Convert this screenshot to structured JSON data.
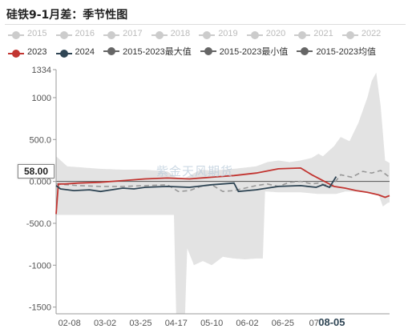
{
  "title": "硅铁9-1月差：季节性图",
  "watermark": "紫金天风期货",
  "value_flag": "58.00",
  "legend_row1": [
    {
      "label": "2015",
      "color": "#cccccc",
      "muted": true
    },
    {
      "label": "2016",
      "color": "#cccccc",
      "muted": true
    },
    {
      "label": "2017",
      "color": "#cccccc",
      "muted": true
    },
    {
      "label": "2018",
      "color": "#cccccc",
      "muted": true
    },
    {
      "label": "2019",
      "color": "#cccccc",
      "muted": true
    },
    {
      "label": "2020",
      "color": "#cccccc",
      "muted": true
    },
    {
      "label": "2021",
      "color": "#cccccc",
      "muted": true
    },
    {
      "label": "2022",
      "color": "#cccccc",
      "muted": true
    }
  ],
  "legend_row2": [
    {
      "label": "2023",
      "color": "#c23531",
      "muted": false
    },
    {
      "label": "2024",
      "color": "#2f4554",
      "muted": false
    },
    {
      "label": "2015-2023最大值",
      "color": "#666666",
      "muted": false
    },
    {
      "label": "2015-2023最小值",
      "color": "#666666",
      "muted": false
    },
    {
      "label": "2015-2023均值",
      "color": "#666666",
      "muted": false
    }
  ],
  "chart_data": {
    "type": "line",
    "title": "硅铁9-1月差：季节性图",
    "ylim": [
      -1580,
      1334
    ],
    "y_ticks": [
      "1334",
      "1000",
      "500.0",
      "0.000",
      "-500.0",
      "-1000",
      "-1500"
    ],
    "y_tick_values": [
      1334,
      1000,
      500,
      0,
      -500,
      -1000,
      -1500
    ],
    "x_ticks": [
      "02-08",
      "03-02",
      "03-25",
      "04-17",
      "05-10",
      "06-02",
      "06-25",
      "07",
      "08-05"
    ],
    "x_tick_index": [
      6,
      22,
      38,
      54,
      70,
      86,
      102,
      116,
      124
    ],
    "x_tick_bold": [
      false,
      false,
      false,
      false,
      false,
      false,
      false,
      false,
      true
    ],
    "n_points": 150,
    "series": [
      {
        "name": "2023",
        "color": "#c23531",
        "points": [
          [
            0,
            -390
          ],
          [
            1,
            -30
          ],
          [
            4,
            -30
          ],
          [
            10,
            -20
          ],
          [
            20,
            -10
          ],
          [
            30,
            10
          ],
          [
            40,
            30
          ],
          [
            50,
            40
          ],
          [
            60,
            30
          ],
          [
            70,
            50
          ],
          [
            80,
            70
          ],
          [
            90,
            100
          ],
          [
            100,
            150
          ],
          [
            110,
            160
          ],
          [
            115,
            80
          ],
          [
            120,
            10
          ],
          [
            125,
            -60
          ],
          [
            130,
            -80
          ],
          [
            135,
            -110
          ],
          [
            140,
            -130
          ],
          [
            145,
            -160
          ],
          [
            148,
            -190
          ],
          [
            150,
            -170
          ]
        ]
      },
      {
        "name": "2024",
        "color": "#2f4554",
        "points": [
          [
            0,
            -50
          ],
          [
            2,
            -90
          ],
          [
            8,
            -110
          ],
          [
            15,
            -100
          ],
          [
            20,
            -120
          ],
          [
            25,
            -100
          ],
          [
            30,
            -80
          ],
          [
            35,
            -90
          ],
          [
            40,
            -70
          ],
          [
            50,
            -60
          ],
          [
            60,
            -70
          ],
          [
            70,
            -40
          ],
          [
            80,
            -20
          ],
          [
            82,
            -120
          ],
          [
            90,
            -100
          ],
          [
            100,
            -60
          ],
          [
            110,
            -50
          ],
          [
            117,
            -70
          ],
          [
            120,
            -40
          ],
          [
            123,
            -70
          ],
          [
            126,
            58
          ]
        ]
      },
      {
        "name": "2015-2023最大值",
        "color": "#e0e0e0",
        "points": [
          [
            0,
            300
          ],
          [
            5,
            180
          ],
          [
            10,
            170
          ],
          [
            20,
            150
          ],
          [
            30,
            140
          ],
          [
            40,
            140
          ],
          [
            50,
            120
          ],
          [
            54,
            50
          ],
          [
            58,
            40
          ],
          [
            65,
            140
          ],
          [
            70,
            130
          ],
          [
            80,
            150
          ],
          [
            90,
            180
          ],
          [
            95,
            230
          ],
          [
            100,
            250
          ],
          [
            105,
            230
          ],
          [
            110,
            250
          ],
          [
            115,
            280
          ],
          [
            118,
            330
          ],
          [
            120,
            300
          ],
          [
            125,
            420
          ],
          [
            128,
            530
          ],
          [
            132,
            480
          ],
          [
            136,
            700
          ],
          [
            140,
            1000
          ],
          [
            142,
            1200
          ],
          [
            144,
            1300
          ],
          [
            146,
            900
          ],
          [
            148,
            250
          ],
          [
            150,
            220
          ]
        ]
      },
      {
        "name": "2015-2023最小值",
        "color": "#e0e0e0",
        "points": [
          [
            0,
            -400
          ],
          [
            53,
            -400
          ],
          [
            54,
            -1580
          ],
          [
            58,
            -1580
          ],
          [
            59,
            -800
          ],
          [
            62,
            -1000
          ],
          [
            66,
            -950
          ],
          [
            70,
            -1000
          ],
          [
            75,
            -900
          ],
          [
            80,
            -920
          ],
          [
            85,
            -930
          ],
          [
            90,
            -920
          ],
          [
            93,
            -920
          ],
          [
            94,
            -120
          ],
          [
            100,
            -130
          ],
          [
            110,
            -130
          ],
          [
            118,
            -150
          ],
          [
            126,
            -150
          ],
          [
            130,
            -120
          ],
          [
            135,
            -120
          ],
          [
            140,
            -130
          ],
          [
            145,
            -150
          ],
          [
            147,
            -300
          ],
          [
            149,
            -260
          ],
          [
            150,
            -250
          ]
        ]
      },
      {
        "name": "2015-2023均值",
        "color": "#aaaaaa",
        "points": [
          [
            0,
            -30
          ],
          [
            5,
            -40
          ],
          [
            10,
            -50
          ],
          [
            20,
            -60
          ],
          [
            30,
            -60
          ],
          [
            40,
            -50
          ],
          [
            50,
            -40
          ],
          [
            55,
            -120
          ],
          [
            60,
            -110
          ],
          [
            65,
            -60
          ],
          [
            70,
            -40
          ],
          [
            75,
            -120
          ],
          [
            80,
            -110
          ],
          [
            85,
            -80
          ],
          [
            90,
            -50
          ],
          [
            95,
            -30
          ],
          [
            100,
            -60
          ],
          [
            105,
            -10
          ],
          [
            110,
            0
          ],
          [
            115,
            -30
          ],
          [
            118,
            -20
          ],
          [
            124,
            -60
          ],
          [
            128,
            80
          ],
          [
            133,
            50
          ],
          [
            138,
            120
          ],
          [
            142,
            100
          ],
          [
            146,
            130
          ],
          [
            150,
            50
          ]
        ]
      }
    ]
  }
}
